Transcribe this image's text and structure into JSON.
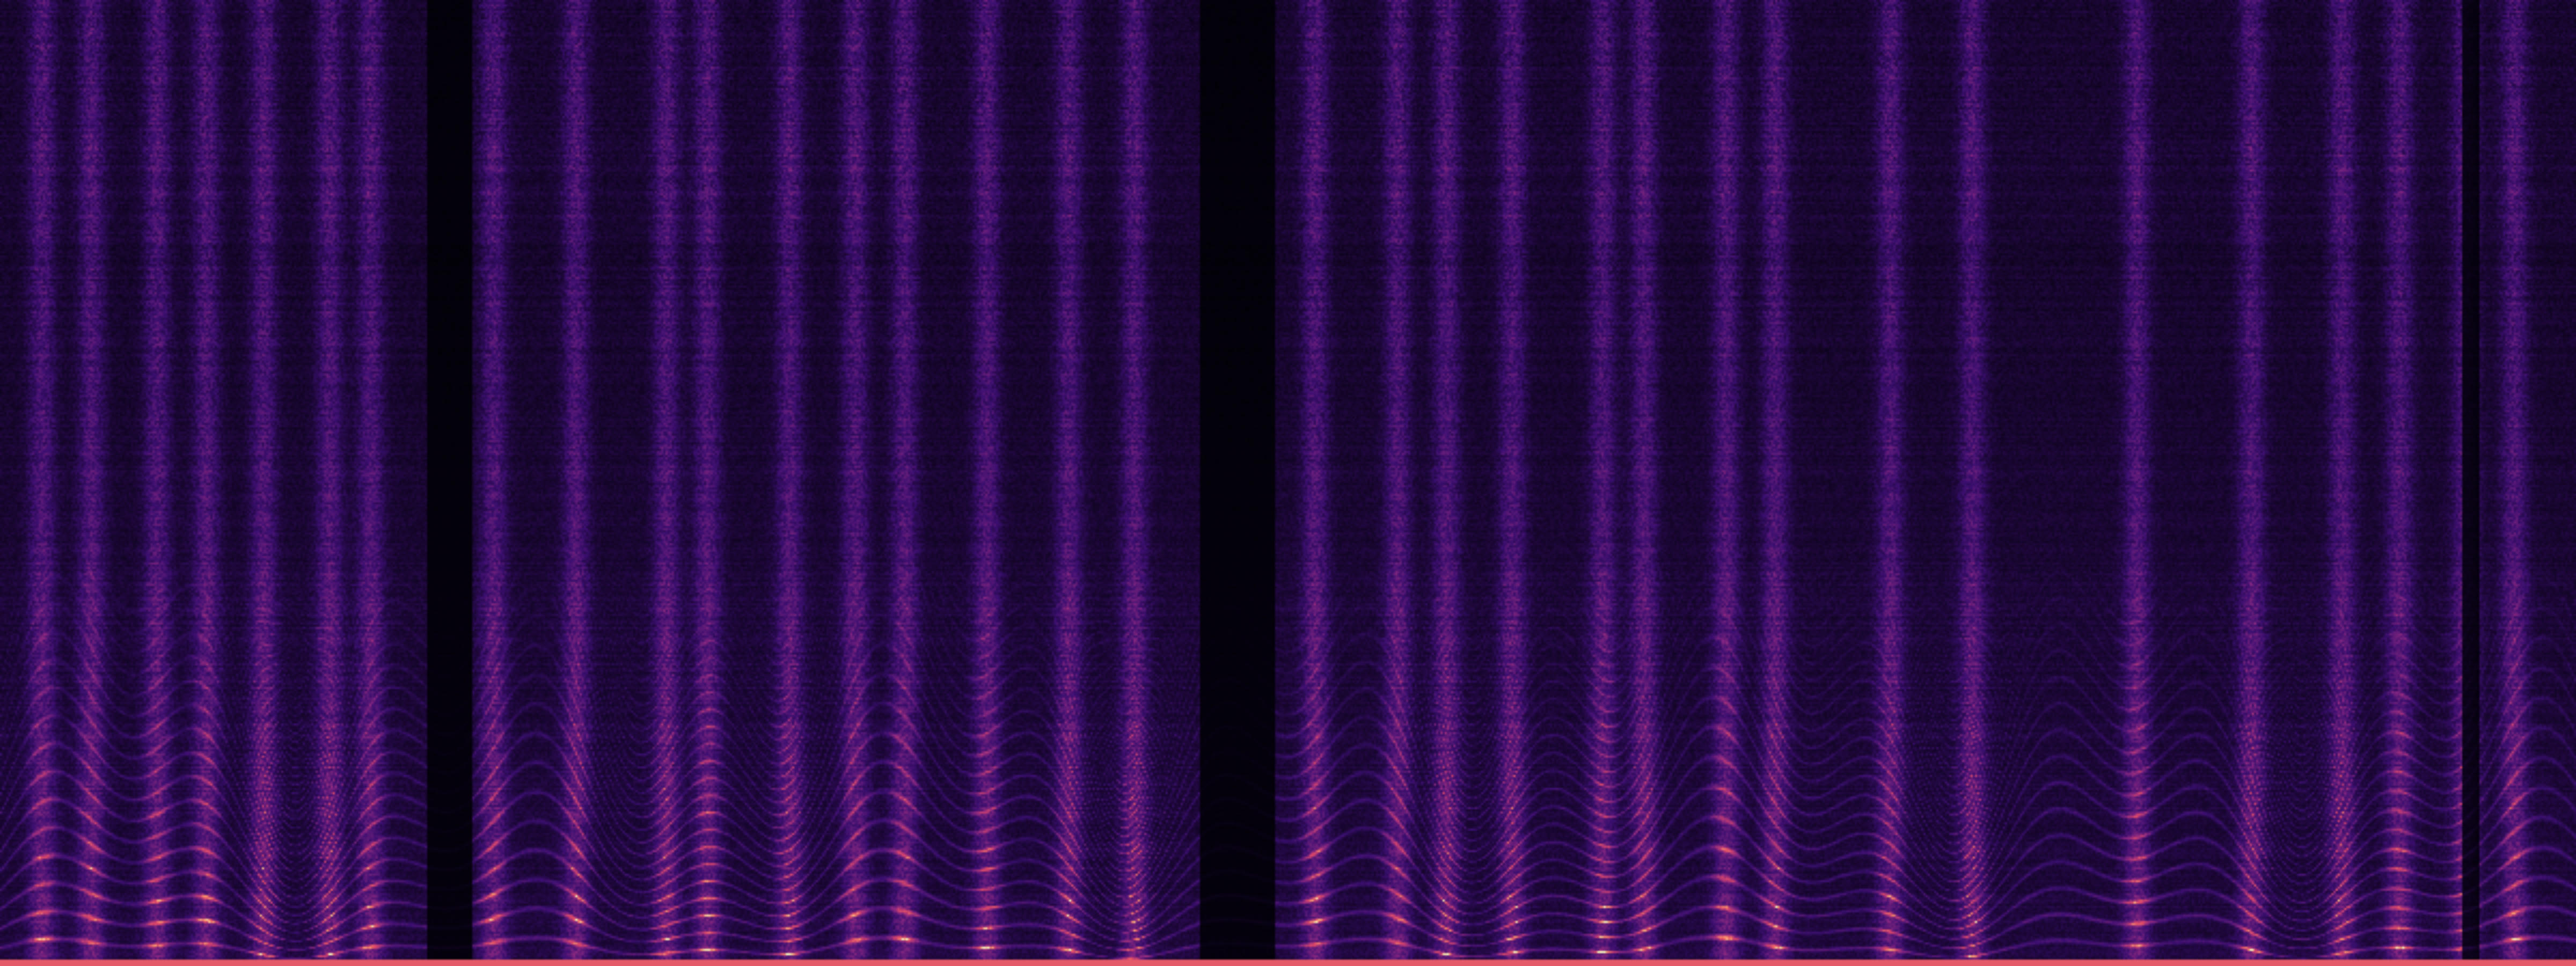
{
  "chart_data": {
    "type": "heatmap",
    "title": "",
    "xlabel": "",
    "ylabel": "",
    "colormap": "magma",
    "colors": [
      "#000004",
      "#3b0f70",
      "#8c2981",
      "#de4968",
      "#fe9f6d",
      "#fcfdbf"
    ],
    "grid": false,
    "legend": "none",
    "axes_visible": false
  }
}
